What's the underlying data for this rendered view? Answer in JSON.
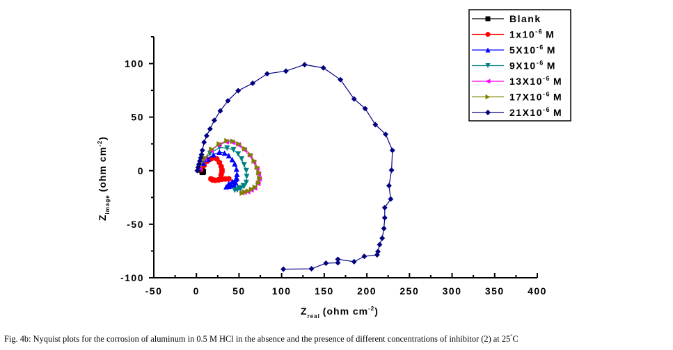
{
  "chart_data": {
    "type": "line",
    "title": "",
    "xlabel": "Z",
    "xlabel_sub": "real",
    "xlabel_units": "(ohm cm",
    "xlabel_units_sup": "-2",
    "ylabel": "Z",
    "ylabel_sub": "image",
    "ylabel_units": "(ohm cm",
    "ylabel_units_sup": "-2",
    "xlim": [
      -50,
      400
    ],
    "ylim": [
      -100,
      125
    ],
    "xticks": [
      -50,
      0,
      50,
      100,
      150,
      200,
      250,
      300,
      350,
      400
    ],
    "yticks": [
      -100,
      -50,
      0,
      50,
      100
    ],
    "grid": false,
    "legend_position": "top-right",
    "series": [
      {
        "name": "Blank",
        "marker": "square",
        "color": "#000000",
        "x": [
          5,
          6,
          7,
          8,
          7
        ],
        "y": [
          2,
          0.5,
          -0.5,
          -1,
          -1.5
        ]
      },
      {
        "name": "1x10",
        "sup": "-6",
        "unit": "M",
        "marker": "circle",
        "color": "#ff0000",
        "x": [
          5,
          9,
          13,
          17,
          20,
          24,
          27,
          29,
          30,
          30,
          29,
          28.5,
          26,
          22,
          19,
          17.6,
          17,
          19,
          22,
          26,
          30,
          34,
          38
        ],
        "y": [
          1,
          5,
          9,
          11,
          12,
          11,
          7.6,
          4,
          1,
          -1,
          -4,
          -7.6,
          -8.5,
          -9,
          -8.7,
          -8,
          -7.6,
          -8.5,
          -9,
          -8.6,
          -8,
          -7.8,
          -7.6
        ]
      },
      {
        "name": "5X10",
        "sup": "-6",
        "unit": "M",
        "marker": "triangle-up",
        "color": "#0000ff",
        "x": [
          3,
          8,
          13.6,
          20,
          27,
          33,
          38,
          42,
          45,
          47,
          47.6,
          47.5,
          46,
          44,
          41,
          38,
          35,
          38,
          42,
          46
        ],
        "y": [
          2,
          7,
          10.9,
          15,
          17.4,
          16.5,
          14,
          10.5,
          6.5,
          1.5,
          -3.3,
          -7,
          -11,
          -13,
          -14,
          -14.5,
          -15,
          -12,
          -10,
          -8
        ]
      },
      {
        "name": "9X10",
        "sup": "-6",
        "unit": "M",
        "marker": "triangle-down",
        "color": "#008080",
        "x": [
          3,
          9,
          16,
          27,
          36,
          43.5,
          49,
          53,
          56,
          58.5,
          59,
          58.5,
          56,
          51.7,
          48,
          45,
          50,
          55
        ],
        "y": [
          3,
          10,
          16,
          21.7,
          21,
          19.5,
          15.5,
          10.9,
          5.5,
          0,
          -5.5,
          -11,
          -14.5,
          -17.4,
          -18,
          -18.4,
          -16,
          -14
        ]
      },
      {
        "name": "13X10",
        "sup": "-6",
        "unit": "M",
        "marker": "triangle-left",
        "color": "#ff00ff",
        "x": [
          3,
          9,
          17,
          26,
          35,
          42,
          49,
          56,
          62.5,
          67,
          70.7,
          72.5,
          73.5,
          72,
          68,
          64,
          60,
          56,
          53
        ],
        "y": [
          3,
          11,
          19,
          24,
          27,
          26.5,
          24,
          19.5,
          14,
          8,
          2,
          -3,
          -7.6,
          -12,
          -16,
          -18,
          -19.5,
          -20,
          -20.6
        ]
      },
      {
        "name": "17X10",
        "sup": "-6",
        "unit": "M",
        "marker": "triangle-right",
        "color": "#808000",
        "x": [
          4,
          10,
          18,
          27,
          36,
          43,
          50,
          57,
          63.5,
          68,
          71.5,
          73.5,
          74.5,
          73,
          69,
          65,
          61,
          57,
          54
        ],
        "y": [
          4,
          12,
          20,
          25,
          28,
          27.5,
          25,
          20.5,
          15,
          9,
          3,
          -2,
          -7,
          -11.5,
          -15.5,
          -17.5,
          -19,
          -20,
          -21
        ]
      },
      {
        "name": "21X10",
        "sup": "-6",
        "unit": "M",
        "marker": "diamond",
        "color": "#000080",
        "x": [
          1,
          2,
          3,
          4,
          5,
          6,
          7,
          9,
          12,
          16,
          21,
          28,
          37,
          49,
          66,
          83,
          105,
          127,
          149,
          169,
          185,
          198,
          210,
          222,
          230,
          229,
          226,
          228,
          221,
          221,
          220,
          218,
          215,
          213,
          212,
          197,
          185,
          166,
          166,
          152,
          135,
          102
        ],
        "y": [
          0,
          3,
          6,
          9,
          12,
          15,
          19,
          26.5,
          32.6,
          39,
          47,
          55.8,
          65.3,
          74.7,
          81.6,
          90.5,
          93,
          99,
          96,
          85,
          67,
          58,
          43,
          34,
          19,
          0.5,
          -14,
          -26.5,
          -34.5,
          -44,
          -54,
          -63,
          -69,
          -75.5,
          -78.6,
          -80,
          -85,
          -82.7,
          -86,
          -86.4,
          -91.6,
          -92
        ]
      }
    ]
  },
  "caption": {
    "text": "Fig. 4b: Nyquist plots for the corrosion of aluminum in 0.5 M HCl in the absence and the presence of different concentrations of inhibitor (2) at 25",
    "sup": "°",
    "unit": "C"
  }
}
